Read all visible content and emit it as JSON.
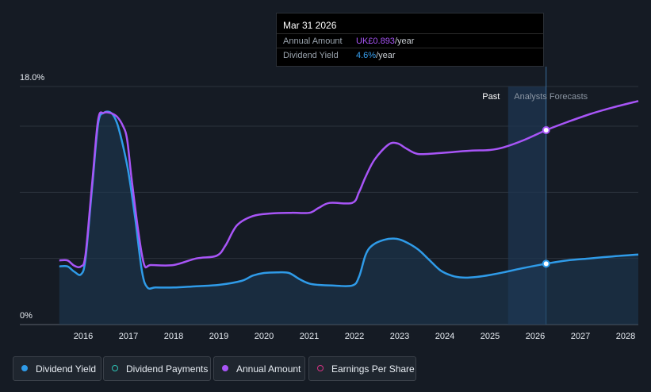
{
  "chart_data": {
    "type": "line",
    "ylabel_ticks": [
      "18.0%",
      "0%"
    ],
    "ylim": [
      0,
      18
    ],
    "x_tick_labels": [
      "2016",
      "2017",
      "2018",
      "2019",
      "2020",
      "2021",
      "2022",
      "2023",
      "2024",
      "2025",
      "2026",
      "2027",
      "2028"
    ],
    "x_tick_values": [
      2016,
      2017,
      2018,
      2019,
      2020,
      2021,
      2022,
      2023,
      2024,
      2025,
      2026,
      2027,
      2028
    ],
    "xlim": [
      2015.0,
      2028.28
    ],
    "past_label": "Past",
    "forecast_label": "Analysts Forecasts",
    "forecast_start": 2025.25,
    "highlight_band": [
      2025.4,
      2026.24
    ],
    "grid": true,
    "series": [
      {
        "name": "Dividend Yield",
        "color": "#2f9be8",
        "fill": true,
        "marker_x": 2026.24,
        "points": [
          [
            2015.47,
            4.4
          ],
          [
            2015.65,
            4.4
          ],
          [
            2015.8,
            4.0
          ],
          [
            2015.95,
            3.8
          ],
          [
            2016.05,
            5.0
          ],
          [
            2016.2,
            10.5
          ],
          [
            2016.33,
            15.2
          ],
          [
            2016.45,
            16.0
          ],
          [
            2016.62,
            16.0
          ],
          [
            2016.75,
            15.2
          ],
          [
            2016.88,
            13.5
          ],
          [
            2017.0,
            11.5
          ],
          [
            2017.15,
            8.0
          ],
          [
            2017.3,
            4.0
          ],
          [
            2017.42,
            2.8
          ],
          [
            2017.6,
            2.8
          ],
          [
            2018.0,
            2.8
          ],
          [
            2018.5,
            2.9
          ],
          [
            2019.0,
            3.0
          ],
          [
            2019.5,
            3.3
          ],
          [
            2019.75,
            3.7
          ],
          [
            2020.0,
            3.9
          ],
          [
            2020.3,
            3.95
          ],
          [
            2020.55,
            3.9
          ],
          [
            2020.8,
            3.4
          ],
          [
            2021.0,
            3.1
          ],
          [
            2021.2,
            3.0
          ],
          [
            2021.5,
            2.95
          ],
          [
            2021.95,
            2.95
          ],
          [
            2022.1,
            3.6
          ],
          [
            2022.25,
            5.3
          ],
          [
            2022.4,
            6.0
          ],
          [
            2022.65,
            6.4
          ],
          [
            2022.9,
            6.5
          ],
          [
            2023.1,
            6.3
          ],
          [
            2023.4,
            5.7
          ],
          [
            2023.65,
            4.9
          ],
          [
            2023.9,
            4.1
          ],
          [
            2024.15,
            3.7
          ],
          [
            2024.4,
            3.55
          ],
          [
            2024.7,
            3.6
          ],
          [
            2025.0,
            3.75
          ],
          [
            2025.3,
            3.95
          ],
          [
            2025.7,
            4.25
          ],
          [
            2026.24,
            4.6
          ],
          [
            2026.7,
            4.85
          ],
          [
            2027.2,
            5.0
          ],
          [
            2027.7,
            5.15
          ],
          [
            2028.28,
            5.3
          ]
        ]
      },
      {
        "name": "Annual Amount",
        "color": "#a855f7",
        "fill": false,
        "marker_x": 2026.24,
        "points": [
          [
            2015.47,
            4.85
          ],
          [
            2015.65,
            4.85
          ],
          [
            2015.8,
            4.45
          ],
          [
            2015.95,
            4.4
          ],
          [
            2016.05,
            5.3
          ],
          [
            2016.2,
            10.8
          ],
          [
            2016.33,
            15.5
          ],
          [
            2016.45,
            16.0
          ],
          [
            2016.6,
            16.0
          ],
          [
            2016.75,
            15.7
          ],
          [
            2016.88,
            15.0
          ],
          [
            2016.97,
            14.0
          ],
          [
            2017.07,
            11.0
          ],
          [
            2017.22,
            7.0
          ],
          [
            2017.35,
            4.5
          ],
          [
            2017.5,
            4.5
          ],
          [
            2018.0,
            4.5
          ],
          [
            2018.5,
            5.0
          ],
          [
            2018.95,
            5.2
          ],
          [
            2019.15,
            6.0
          ],
          [
            2019.4,
            7.5
          ],
          [
            2019.75,
            8.2
          ],
          [
            2020.15,
            8.4
          ],
          [
            2020.6,
            8.45
          ],
          [
            2021.0,
            8.45
          ],
          [
            2021.2,
            8.8
          ],
          [
            2021.45,
            9.2
          ],
          [
            2021.95,
            9.2
          ],
          [
            2022.1,
            10.0
          ],
          [
            2022.25,
            11.2
          ],
          [
            2022.45,
            12.5
          ],
          [
            2022.75,
            13.6
          ],
          [
            2022.95,
            13.7
          ],
          [
            2023.15,
            13.3
          ],
          [
            2023.4,
            12.9
          ],
          [
            2023.8,
            12.95
          ],
          [
            2024.2,
            13.05
          ],
          [
            2024.6,
            13.15
          ],
          [
            2025.0,
            13.2
          ],
          [
            2025.3,
            13.4
          ],
          [
            2025.75,
            13.95
          ],
          [
            2026.24,
            14.7
          ],
          [
            2026.7,
            15.3
          ],
          [
            2027.2,
            15.9
          ],
          [
            2027.7,
            16.4
          ],
          [
            2028.28,
            16.9
          ]
        ]
      }
    ],
    "tooltip": {
      "date": "Mar 31 2026",
      "annual_amount_label": "Annual Amount",
      "annual_amount_value": "UK£0.893",
      "annual_amount_unit": "/year",
      "dividend_yield_label": "Dividend Yield",
      "dividend_yield_value": "4.6%",
      "dividend_yield_unit": "/year"
    },
    "legend": [
      {
        "label": "Dividend Yield",
        "color": "#2f9be8",
        "style": "filled"
      },
      {
        "label": "Dividend Payments",
        "color": "#2ec4b6",
        "style": "hollow"
      },
      {
        "label": "Annual Amount",
        "color": "#a855f7",
        "style": "filled"
      },
      {
        "label": "Earnings Per Share",
        "color": "#d63384",
        "style": "hollow"
      }
    ]
  }
}
